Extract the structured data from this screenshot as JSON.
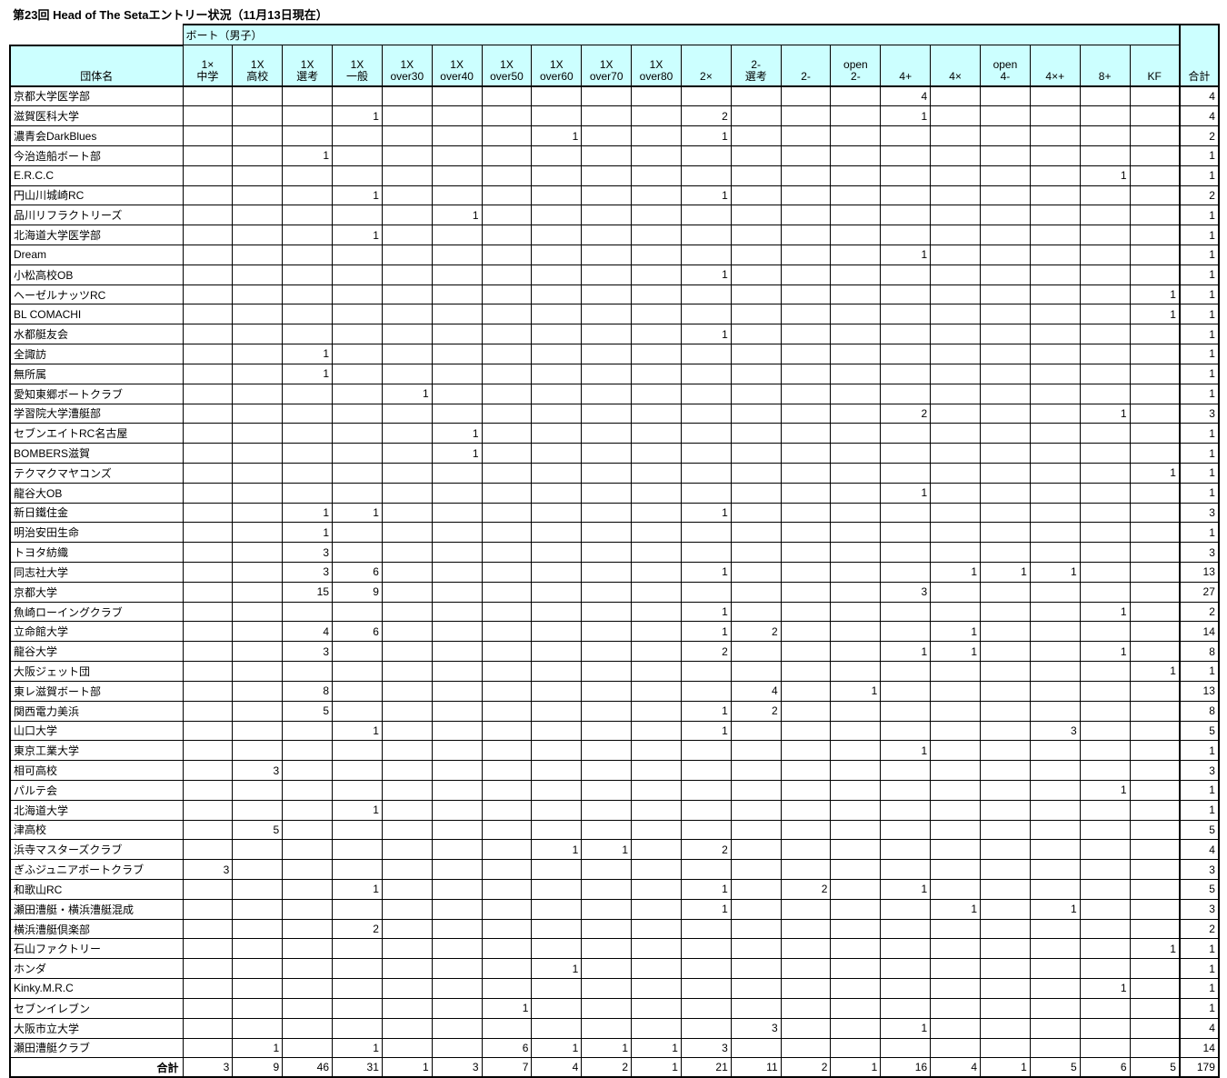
{
  "title": "第23回 Head of The Setaエントリー状況（11月13日現在）",
  "colors": {
    "header_fill": "#ccffff",
    "grid": "#000000",
    "background": "#ffffff"
  },
  "table": {
    "group_header": "ボート（男子）",
    "name_header": "団体名",
    "total_col_label": "合計",
    "total_row_label": "合計",
    "columns": [
      [
        "1×",
        "中学"
      ],
      [
        "1X",
        "高校"
      ],
      [
        "1X",
        "選考"
      ],
      [
        "1X",
        "一般"
      ],
      [
        "1X",
        "over30"
      ],
      [
        "1X",
        "over40"
      ],
      [
        "1X",
        "over50"
      ],
      [
        "1X",
        "over60"
      ],
      [
        "1X",
        "over70"
      ],
      [
        "1X",
        "over80"
      ],
      [
        "2×"
      ],
      [
        "2-",
        "選考"
      ],
      [
        "2-"
      ],
      [
        "open",
        "2-"
      ],
      [
        "4+"
      ],
      [
        "4×"
      ],
      [
        "open",
        "4-"
      ],
      [
        "4×+"
      ],
      [
        "8+"
      ],
      [
        "KF"
      ]
    ],
    "rows": [
      {
        "name": "京都大学医学部",
        "cells": [
          "",
          "",
          "",
          "",
          "",
          "",
          "",
          "",
          "",
          "",
          "",
          "",
          "",
          "",
          "4",
          "",
          "",
          "",
          "",
          ""
        ],
        "total": "4"
      },
      {
        "name": "滋賀医科大学",
        "cells": [
          "",
          "",
          "",
          "1",
          "",
          "",
          "",
          "",
          "",
          "",
          "2",
          "",
          "",
          "",
          "1",
          "",
          "",
          "",
          "",
          ""
        ],
        "total": "4"
      },
      {
        "name": "濃青会DarkBlues",
        "cells": [
          "",
          "",
          "",
          "",
          "",
          "",
          "",
          "1",
          "",
          "",
          "1",
          "",
          "",
          "",
          "",
          "",
          "",
          "",
          "",
          ""
        ],
        "total": "2"
      },
      {
        "name": "今治造船ボート部",
        "cells": [
          "",
          "",
          "1",
          "",
          "",
          "",
          "",
          "",
          "",
          "",
          "",
          "",
          "",
          "",
          "",
          "",
          "",
          "",
          "",
          ""
        ],
        "total": "1"
      },
      {
        "name": "E.R.C.C",
        "cells": [
          "",
          "",
          "",
          "",
          "",
          "",
          "",
          "",
          "",
          "",
          "",
          "",
          "",
          "",
          "",
          "",
          "",
          "",
          "1",
          ""
        ],
        "total": "1"
      },
      {
        "name": "円山川城崎RC",
        "cells": [
          "",
          "",
          "",
          "1",
          "",
          "",
          "",
          "",
          "",
          "",
          "1",
          "",
          "",
          "",
          "",
          "",
          "",
          "",
          "",
          ""
        ],
        "total": "2"
      },
      {
        "name": "品川リフラクトリーズ",
        "cells": [
          "",
          "",
          "",
          "",
          "",
          "1",
          "",
          "",
          "",
          "",
          "",
          "",
          "",
          "",
          "",
          "",
          "",
          "",
          "",
          ""
        ],
        "total": "1"
      },
      {
        "name": "北海道大学医学部",
        "cells": [
          "",
          "",
          "",
          "1",
          "",
          "",
          "",
          "",
          "",
          "",
          "",
          "",
          "",
          "",
          "",
          "",
          "",
          "",
          "",
          ""
        ],
        "total": "1"
      },
      {
        "name": "Dream",
        "cells": [
          "",
          "",
          "",
          "",
          "",
          "",
          "",
          "",
          "",
          "",
          "",
          "",
          "",
          "",
          "1",
          "",
          "",
          "",
          "",
          ""
        ],
        "total": "1"
      },
      {
        "name": "小松高校OB",
        "cells": [
          "",
          "",
          "",
          "",
          "",
          "",
          "",
          "",
          "",
          "",
          "1",
          "",
          "",
          "",
          "",
          "",
          "",
          "",
          "",
          ""
        ],
        "total": "1"
      },
      {
        "name": "ヘーゼルナッツRC",
        "cells": [
          "",
          "",
          "",
          "",
          "",
          "",
          "",
          "",
          "",
          "",
          "",
          "",
          "",
          "",
          "",
          "",
          "",
          "",
          "",
          "1"
        ],
        "total": "1"
      },
      {
        "name": "BL COMACHI",
        "cells": [
          "",
          "",
          "",
          "",
          "",
          "",
          "",
          "",
          "",
          "",
          "",
          "",
          "",
          "",
          "",
          "",
          "",
          "",
          "",
          "1"
        ],
        "total": "1"
      },
      {
        "name": "水都艇友会",
        "cells": [
          "",
          "",
          "",
          "",
          "",
          "",
          "",
          "",
          "",
          "",
          "1",
          "",
          "",
          "",
          "",
          "",
          "",
          "",
          "",
          ""
        ],
        "total": "1"
      },
      {
        "name": "全諏訪",
        "cells": [
          "",
          "",
          "1",
          "",
          "",
          "",
          "",
          "",
          "",
          "",
          "",
          "",
          "",
          "",
          "",
          "",
          "",
          "",
          "",
          ""
        ],
        "total": "1"
      },
      {
        "name": "無所属",
        "cells": [
          "",
          "",
          "1",
          "",
          "",
          "",
          "",
          "",
          "",
          "",
          "",
          "",
          "",
          "",
          "",
          "",
          "",
          "",
          "",
          ""
        ],
        "total": "1"
      },
      {
        "name": "愛知東郷ボートクラブ",
        "cells": [
          "",
          "",
          "",
          "",
          "1",
          "",
          "",
          "",
          "",
          "",
          "",
          "",
          "",
          "",
          "",
          "",
          "",
          "",
          "",
          ""
        ],
        "total": "1"
      },
      {
        "name": "学習院大学漕艇部",
        "cells": [
          "",
          "",
          "",
          "",
          "",
          "",
          "",
          "",
          "",
          "",
          "",
          "",
          "",
          "",
          "2",
          "",
          "",
          "",
          "1",
          ""
        ],
        "total": "3"
      },
      {
        "name": "セブンエイトRC名古屋",
        "cells": [
          "",
          "",
          "",
          "",
          "",
          "1",
          "",
          "",
          "",
          "",
          "",
          "",
          "",
          "",
          "",
          "",
          "",
          "",
          "",
          ""
        ],
        "total": "1"
      },
      {
        "name": "BOMBERS滋賀",
        "cells": [
          "",
          "",
          "",
          "",
          "",
          "1",
          "",
          "",
          "",
          "",
          "",
          "",
          "",
          "",
          "",
          "",
          "",
          "",
          "",
          ""
        ],
        "total": "1"
      },
      {
        "name": "テクマクマヤコンズ",
        "cells": [
          "",
          "",
          "",
          "",
          "",
          "",
          "",
          "",
          "",
          "",
          "",
          "",
          "",
          "",
          "",
          "",
          "",
          "",
          "",
          "1"
        ],
        "total": "1"
      },
      {
        "name": "龍谷大OB",
        "cells": [
          "",
          "",
          "",
          "",
          "",
          "",
          "",
          "",
          "",
          "",
          "",
          "",
          "",
          "",
          "1",
          "",
          "",
          "",
          "",
          ""
        ],
        "total": "1"
      },
      {
        "name": "新日鐵住金",
        "cells": [
          "",
          "",
          "1",
          "1",
          "",
          "",
          "",
          "",
          "",
          "",
          "1",
          "",
          "",
          "",
          "",
          "",
          "",
          "",
          "",
          ""
        ],
        "total": "3"
      },
      {
        "name": "明治安田生命",
        "cells": [
          "",
          "",
          "1",
          "",
          "",
          "",
          "",
          "",
          "",
          "",
          "",
          "",
          "",
          "",
          "",
          "",
          "",
          "",
          "",
          ""
        ],
        "total": "1"
      },
      {
        "name": "トヨタ紡織",
        "cells": [
          "",
          "",
          "3",
          "",
          "",
          "",
          "",
          "",
          "",
          "",
          "",
          "",
          "",
          "",
          "",
          "",
          "",
          "",
          "",
          ""
        ],
        "total": "3"
      },
      {
        "name": "同志社大学",
        "cells": [
          "",
          "",
          "3",
          "6",
          "",
          "",
          "",
          "",
          "",
          "",
          "1",
          "",
          "",
          "",
          "",
          "1",
          "1",
          "1",
          "",
          ""
        ],
        "total": "13"
      },
      {
        "name": "京都大学",
        "cells": [
          "",
          "",
          "15",
          "9",
          "",
          "",
          "",
          "",
          "",
          "",
          "",
          "",
          "",
          "",
          "3",
          "",
          "",
          "",
          "",
          ""
        ],
        "total": "27"
      },
      {
        "name": "魚崎ローイングクラブ",
        "cells": [
          "",
          "",
          "",
          "",
          "",
          "",
          "",
          "",
          "",
          "",
          "1",
          "",
          "",
          "",
          "",
          "",
          "",
          "",
          "1",
          ""
        ],
        "total": "2"
      },
      {
        "name": "立命館大学",
        "cells": [
          "",
          "",
          "4",
          "6",
          "",
          "",
          "",
          "",
          "",
          "",
          "1",
          "2",
          "",
          "",
          "",
          "1",
          "",
          "",
          "",
          ""
        ],
        "total": "14"
      },
      {
        "name": "龍谷大学",
        "cells": [
          "",
          "",
          "3",
          "",
          "",
          "",
          "",
          "",
          "",
          "",
          "2",
          "",
          "",
          "",
          "1",
          "1",
          "",
          "",
          "1",
          ""
        ],
        "total": "8"
      },
      {
        "name": "大阪ジェット団",
        "cells": [
          "",
          "",
          "",
          "",
          "",
          "",
          "",
          "",
          "",
          "",
          "",
          "",
          "",
          "",
          "",
          "",
          "",
          "",
          "",
          "1"
        ],
        "total": "1"
      },
      {
        "name": "東レ滋賀ボート部",
        "cells": [
          "",
          "",
          "8",
          "",
          "",
          "",
          "",
          "",
          "",
          "",
          "",
          "4",
          "",
          "1",
          "",
          "",
          "",
          "",
          "",
          ""
        ],
        "total": "13"
      },
      {
        "name": "関西電力美浜",
        "cells": [
          "",
          "",
          "5",
          "",
          "",
          "",
          "",
          "",
          "",
          "",
          "1",
          "2",
          "",
          "",
          "",
          "",
          "",
          "",
          "",
          ""
        ],
        "total": "8"
      },
      {
        "name": "山口大学",
        "cells": [
          "",
          "",
          "",
          "1",
          "",
          "",
          "",
          "",
          "",
          "",
          "1",
          "",
          "",
          "",
          "",
          "",
          "",
          "3",
          "",
          ""
        ],
        "total": "5"
      },
      {
        "name": "東京工業大学",
        "cells": [
          "",
          "",
          "",
          "",
          "",
          "",
          "",
          "",
          "",
          "",
          "",
          "",
          "",
          "",
          "1",
          "",
          "",
          "",
          "",
          ""
        ],
        "total": "1"
      },
      {
        "name": "相可高校",
        "cells": [
          "",
          "3",
          "",
          "",
          "",
          "",
          "",
          "",
          "",
          "",
          "",
          "",
          "",
          "",
          "",
          "",
          "",
          "",
          "",
          ""
        ],
        "total": "3"
      },
      {
        "name": "パルテ会",
        "cells": [
          "",
          "",
          "",
          "",
          "",
          "",
          "",
          "",
          "",
          "",
          "",
          "",
          "",
          "",
          "",
          "",
          "",
          "",
          "1",
          ""
        ],
        "total": "1"
      },
      {
        "name": "北海道大学",
        "cells": [
          "",
          "",
          "",
          "1",
          "",
          "",
          "",
          "",
          "",
          "",
          "",
          "",
          "",
          "",
          "",
          "",
          "",
          "",
          "",
          ""
        ],
        "total": "1"
      },
      {
        "name": "津高校",
        "cells": [
          "",
          "5",
          "",
          "",
          "",
          "",
          "",
          "",
          "",
          "",
          "",
          "",
          "",
          "",
          "",
          "",
          "",
          "",
          "",
          ""
        ],
        "total": "5"
      },
      {
        "name": "浜寺マスターズクラブ",
        "cells": [
          "",
          "",
          "",
          "",
          "",
          "",
          "",
          "1",
          "1",
          "",
          "2",
          "",
          "",
          "",
          "",
          "",
          "",
          "",
          "",
          ""
        ],
        "total": "4"
      },
      {
        "name": "ぎふジュニアボートクラブ",
        "cells": [
          "3",
          "",
          "",
          "",
          "",
          "",
          "",
          "",
          "",
          "",
          "",
          "",
          "",
          "",
          "",
          "",
          "",
          "",
          "",
          ""
        ],
        "total": "3"
      },
      {
        "name": "和歌山RC",
        "cells": [
          "",
          "",
          "",
          "1",
          "",
          "",
          "",
          "",
          "",
          "",
          "1",
          "",
          "2",
          "",
          "1",
          "",
          "",
          "",
          "",
          ""
        ],
        "total": "5"
      },
      {
        "name": "瀬田漕艇・横浜漕艇混成",
        "cells": [
          "",
          "",
          "",
          "",
          "",
          "",
          "",
          "",
          "",
          "",
          "1",
          "",
          "",
          "",
          "",
          "1",
          "",
          "1",
          "",
          ""
        ],
        "total": "3"
      },
      {
        "name": "横浜漕艇倶楽部",
        "cells": [
          "",
          "",
          "",
          "2",
          "",
          "",
          "",
          "",
          "",
          "",
          "",
          "",
          "",
          "",
          "",
          "",
          "",
          "",
          "",
          ""
        ],
        "total": "2"
      },
      {
        "name": "石山ファクトリー",
        "cells": [
          "",
          "",
          "",
          "",
          "",
          "",
          "",
          "",
          "",
          "",
          "",
          "",
          "",
          "",
          "",
          "",
          "",
          "",
          "",
          "1"
        ],
        "total": "1"
      },
      {
        "name": "ホンダ",
        "cells": [
          "",
          "",
          "",
          "",
          "",
          "",
          "",
          "1",
          "",
          "",
          "",
          "",
          "",
          "",
          "",
          "",
          "",
          "",
          "",
          ""
        ],
        "total": "1"
      },
      {
        "name": "Kinky.M.R.C",
        "cells": [
          "",
          "",
          "",
          "",
          "",
          "",
          "",
          "",
          "",
          "",
          "",
          "",
          "",
          "",
          "",
          "",
          "",
          "",
          "1",
          ""
        ],
        "total": "1"
      },
      {
        "name": "セブンイレブン",
        "cells": [
          "",
          "",
          "",
          "",
          "",
          "",
          "1",
          "",
          "",
          "",
          "",
          "",
          "",
          "",
          "",
          "",
          "",
          "",
          "",
          ""
        ],
        "total": "1"
      },
      {
        "name": "大阪市立大学",
        "cells": [
          "",
          "",
          "",
          "",
          "",
          "",
          "",
          "",
          "",
          "",
          "",
          "3",
          "",
          "",
          "1",
          "",
          "",
          "",
          "",
          ""
        ],
        "total": "4"
      },
      {
        "name": "瀬田漕艇クラブ",
        "cells": [
          "",
          "1",
          "",
          "1",
          "",
          "",
          "6",
          "1",
          "1",
          "1",
          "3",
          "",
          "",
          "",
          "",
          "",
          "",
          "",
          "",
          ""
        ],
        "total": "14"
      }
    ],
    "totals": [
      "3",
      "9",
      "46",
      "31",
      "1",
      "3",
      "7",
      "4",
      "2",
      "1",
      "21",
      "11",
      "2",
      "1",
      "16",
      "4",
      "1",
      "5",
      "6",
      "5"
    ],
    "grand_total": "179"
  }
}
